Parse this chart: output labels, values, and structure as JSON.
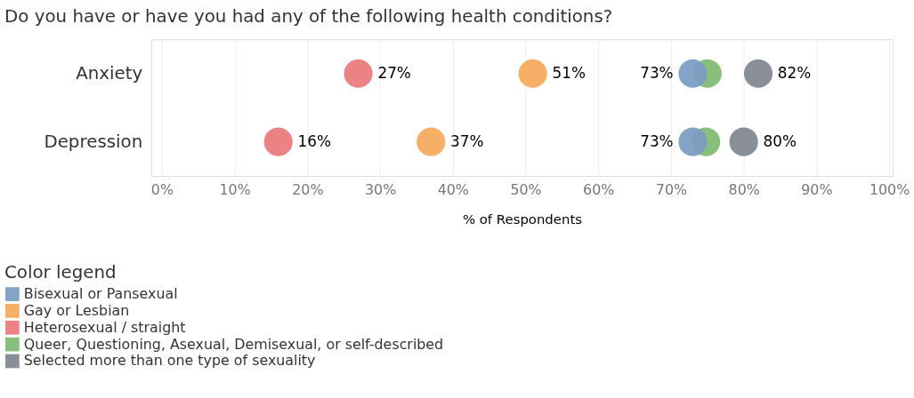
{
  "chart_data": {
    "type": "scatter",
    "title": "Do you have or have you had any of the following health conditions?",
    "xlabel": "% of Respondents",
    "legend_title": "Color legend",
    "orientation": "horizontal",
    "categories": [
      "Anxiety",
      "Depression"
    ],
    "series": [
      {
        "name": "Bisexual or Pansexual",
        "color": "#7a9cc2",
        "values": [
          73,
          73
        ],
        "value_labels": [
          "73%",
          "73%"
        ]
      },
      {
        "name": "Gay or Lesbian",
        "color": "#f5a85a",
        "values": [
          51,
          37
        ],
        "value_labels": [
          "51%",
          "37%"
        ]
      },
      {
        "name": "Heterosexual / straight",
        "color": "#e97879",
        "values": [
          27,
          16
        ],
        "value_labels": [
          "27%",
          "16%"
        ]
      },
      {
        "name": "Queer, Questioning, Asexual, Demisexual, or self-described",
        "color": "#7fba72",
        "values": [
          75,
          74.8
        ],
        "value_labels": [
          null,
          null
        ]
      },
      {
        "name": "Selected more than one type of sexuality",
        "color": "#7f8590",
        "values": [
          82,
          80
        ],
        "value_labels": [
          "82%",
          "80%"
        ]
      }
    ],
    "xlim": [
      -1.5,
      100.5
    ],
    "xticks": [
      {
        "value": 0,
        "label": "0%"
      },
      {
        "value": 10,
        "label": "10%"
      },
      {
        "value": 20,
        "label": "20%"
      },
      {
        "value": 30,
        "label": "30%"
      },
      {
        "value": 40,
        "label": "40%"
      },
      {
        "value": 50,
        "label": "50%"
      },
      {
        "value": 60,
        "label": "60%"
      },
      {
        "value": 70,
        "label": "70%"
      },
      {
        "value": 80,
        "label": "80%"
      },
      {
        "value": 90,
        "label": "90%"
      },
      {
        "value": 100,
        "label": "100%"
      }
    ],
    "grid": "x",
    "legend": "bottom left",
    "marker": "circle"
  }
}
